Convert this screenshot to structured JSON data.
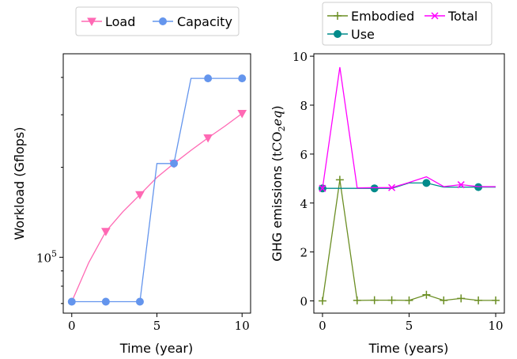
{
  "chart_data": [
    {
      "type": "line",
      "xlabel": "Time (year)",
      "ylabel": "Workload (Gflops)",
      "xlim": [
        -0.5,
        10.5
      ],
      "xticks": [
        0,
        5,
        10
      ],
      "ylog": true,
      "ylim": [
        65000,
        480000
      ],
      "yticks": [
        {
          "value": 100000,
          "base": "10",
          "exp": "5"
        }
      ],
      "legend": "top, outside",
      "series": [
        {
          "name": "Load",
          "color": "#ff69b4",
          "marker": "triangle-down",
          "x": [
            0,
            1,
            2,
            3,
            4,
            5,
            6,
            7,
            8,
            9,
            10
          ],
          "y": [
            71000,
            96000,
            122000,
            142000,
            162000,
            185000,
            206000,
            228000,
            251000,
            275000,
            303000
          ],
          "markers_at": [
            2,
            4,
            6,
            8,
            10
          ]
        },
        {
          "name": "Capacity",
          "color": "#6495ed",
          "marker": "circle",
          "x": [
            0,
            1,
            2,
            3,
            4,
            5,
            6,
            7,
            8,
            9,
            10
          ],
          "y": [
            71000,
            71000,
            71000,
            71000,
            71000,
            206000,
            206000,
            397000,
            397000,
            397000,
            397000
          ],
          "markers_at": [
            0,
            2,
            4,
            6,
            8,
            10
          ]
        }
      ]
    },
    {
      "type": "line",
      "xlabel": "Time (years)",
      "ylabel_text": "GHG emissions (",
      "ylabel_math": "tCO",
      "ylabel_sub": "2",
      "ylabel_math2": "eq",
      "ylabel_close": ")",
      "xlim": [
        -0.5,
        10.5
      ],
      "xticks": [
        0,
        5,
        10
      ],
      "ylim": [
        -0.5,
        10.1
      ],
      "yticks": [
        0,
        2,
        4,
        6,
        8,
        10
      ],
      "legend": "top, outside, 2 columns",
      "series": [
        {
          "name": "Embodied",
          "color": "#6b8e23",
          "marker": "plus",
          "x": [
            0,
            1,
            2,
            3,
            4,
            5,
            6,
            7,
            8,
            9,
            10
          ],
          "y": [
            0,
            4.95,
            0.02,
            0.03,
            0.03,
            0.02,
            0.25,
            0.02,
            0.1,
            0.02,
            0.02
          ],
          "markers_at": [
            0,
            1,
            2,
            3,
            4,
            5,
            6,
            7,
            8,
            9,
            10
          ]
        },
        {
          "name": "Use",
          "color": "#008b8b",
          "marker": "circle",
          "x": [
            0,
            1,
            2,
            3,
            4,
            5,
            6,
            7,
            8,
            9,
            10
          ],
          "y": [
            4.6,
            4.6,
            4.6,
            4.6,
            4.6,
            4.82,
            4.82,
            4.65,
            4.65,
            4.65,
            4.65
          ],
          "markers_at": [
            0,
            3,
            6,
            9
          ]
        },
        {
          "name": "Total",
          "color": "#ff00ff",
          "marker": "x",
          "x": [
            0,
            1,
            2,
            3,
            4,
            5,
            6,
            7,
            8,
            9,
            10
          ],
          "y": [
            4.6,
            9.55,
            4.62,
            4.63,
            4.63,
            4.84,
            5.07,
            4.67,
            4.75,
            4.67,
            4.67
          ],
          "markers_at": [
            0,
            4,
            8
          ]
        }
      ]
    }
  ]
}
